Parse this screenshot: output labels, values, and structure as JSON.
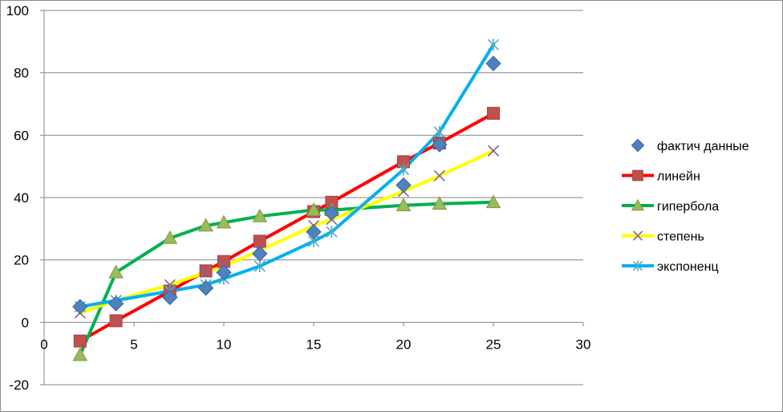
{
  "chart_data": {
    "type": "line",
    "title": "",
    "xlabel": "",
    "ylabel": "",
    "xlim": [
      0,
      30
    ],
    "ylim": [
      -20,
      100
    ],
    "xticks": [
      0,
      5,
      10,
      15,
      20,
      25,
      30
    ],
    "yticks": [
      -20,
      0,
      20,
      40,
      60,
      80,
      100
    ],
    "xtick_labels": [
      "0",
      "5",
      "10",
      "15",
      "20",
      "25",
      "30"
    ],
    "ytick_labels": [
      "-20",
      "0",
      "20",
      "40",
      "60",
      "80",
      "100"
    ],
    "grid": "horizontal major gridlines",
    "legend_position": "right",
    "series": [
      {
        "name": "фактич данные",
        "color": "#4f81bd",
        "line": false,
        "marker": "diamond",
        "points": [
          [
            2,
            5
          ],
          [
            4,
            6
          ],
          [
            7,
            8
          ],
          [
            9,
            11
          ],
          [
            10,
            16
          ],
          [
            12,
            22
          ],
          [
            15,
            29
          ],
          [
            16,
            35
          ],
          [
            20,
            44
          ],
          [
            22,
            57
          ],
          [
            25,
            83
          ]
        ]
      },
      {
        "name": "линейн",
        "color": "#ff0000",
        "markerColor": "#c0504d",
        "line": true,
        "marker": "square",
        "points": [
          [
            2,
            -6
          ],
          [
            4,
            0.5
          ],
          [
            7,
            10
          ],
          [
            9,
            16.5
          ],
          [
            10,
            19.5
          ],
          [
            12,
            26
          ],
          [
            15,
            35.5
          ],
          [
            16,
            38.5
          ],
          [
            20,
            51.5
          ],
          [
            22,
            57.5
          ],
          [
            25,
            67
          ]
        ]
      },
      {
        "name": "гипербола",
        "color": "#00b050",
        "markerColor": "#9bbb59",
        "line": true,
        "marker": "triangle",
        "points": [
          [
            2,
            -10.5
          ],
          [
            4,
            16
          ],
          [
            7,
            27
          ],
          [
            9,
            31
          ],
          [
            10,
            32
          ],
          [
            12,
            34
          ],
          [
            15,
            36
          ],
          [
            16,
            36
          ],
          [
            20,
            37.5
          ],
          [
            22,
            38
          ],
          [
            25,
            38.5
          ]
        ]
      },
      {
        "name": "степень",
        "color": "#ffff00",
        "markerColor": "#8064a2",
        "line": true,
        "marker": "x",
        "points": [
          [
            2,
            3
          ],
          [
            4,
            7
          ],
          [
            7,
            12
          ],
          [
            9,
            16
          ],
          [
            10,
            18
          ],
          [
            12,
            23
          ],
          [
            15,
            31
          ],
          [
            16,
            33
          ],
          [
            20,
            42
          ],
          [
            22,
            47
          ],
          [
            25,
            55
          ]
        ]
      },
      {
        "name": "экспоненц",
        "color": "#00b0f0",
        "markerColor": "#4bacc6",
        "line": true,
        "marker": "star",
        "points": [
          [
            2,
            5
          ],
          [
            4,
            7
          ],
          [
            7,
            10
          ],
          [
            9,
            12
          ],
          [
            10,
            14
          ],
          [
            12,
            18
          ],
          [
            15,
            26
          ],
          [
            16,
            29
          ],
          [
            20,
            49
          ],
          [
            22,
            61
          ],
          [
            25,
            89
          ]
        ]
      }
    ]
  }
}
